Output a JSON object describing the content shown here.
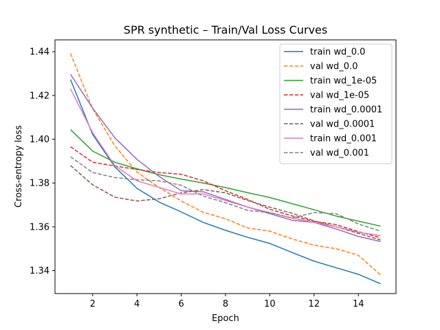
{
  "chart_data": {
    "type": "line",
    "title": "SPR synthetic – Train/Val Loss Curves",
    "xlabel": "Epoch",
    "ylabel": "Cross-entropy loss",
    "xlim": [
      0.3,
      15.7
    ],
    "ylim": [
      1.3295,
      1.4454
    ],
    "xticks": [
      2,
      4,
      6,
      8,
      10,
      12,
      14
    ],
    "yticks": [
      1.34,
      1.36,
      1.38,
      1.4,
      1.42,
      1.44
    ],
    "ytick_labels": [
      "1.34",
      "1.36",
      "1.38",
      "1.40",
      "1.42",
      "1.44"
    ],
    "grid": false,
    "legend_position": "top-right",
    "x": [
      1,
      2,
      3,
      4,
      5,
      6,
      7,
      8,
      9,
      10,
      11,
      12,
      13,
      14,
      15
    ],
    "series": [
      {
        "name": "train wd_0.0",
        "color": "#1f77b4",
        "dash": "solid",
        "values": [
          1.4273,
          1.4022,
          1.3874,
          1.3776,
          1.3713,
          1.3668,
          1.362,
          1.3584,
          1.3552,
          1.3524,
          1.3483,
          1.3443,
          1.3413,
          1.3383,
          1.334
        ]
      },
      {
        "name": "val wd_0.0",
        "color": "#ff7f0e",
        "dash": "dashed",
        "values": [
          1.4392,
          1.414,
          1.397,
          1.385,
          1.378,
          1.3718,
          1.3666,
          1.3637,
          1.3595,
          1.358,
          1.3545,
          1.3516,
          1.35,
          1.347,
          1.338
        ]
      },
      {
        "name": "train wd_1e-05",
        "color": "#2ca02c",
        "dash": "solid",
        "values": [
          1.4044,
          1.3946,
          1.3895,
          1.3865,
          1.3838,
          1.3818,
          1.38,
          1.3779,
          1.3756,
          1.3734,
          1.3706,
          1.3678,
          1.3649,
          1.3626,
          1.3603
        ]
      },
      {
        "name": "val wd_1e-05",
        "color": "#d62728",
        "dash": "dashed",
        "values": [
          1.3966,
          1.3895,
          1.3878,
          1.3862,
          1.3848,
          1.384,
          1.381,
          1.3765,
          1.3725,
          1.368,
          1.365,
          1.3625,
          1.361,
          1.3578,
          1.355
        ]
      },
      {
        "name": "train wd_0.0001",
        "color": "#9467bd",
        "dash": "solid",
        "values": [
          1.4297,
          1.4142,
          1.4007,
          1.3908,
          1.383,
          1.3765,
          1.376,
          1.3725,
          1.369,
          1.366,
          1.363,
          1.362,
          1.359,
          1.3556,
          1.3533
        ]
      },
      {
        "name": "val wd_0.0001",
        "color": "#8c564b",
        "dash": "dashed",
        "values": [
          1.388,
          1.3792,
          1.3735,
          1.3718,
          1.3728,
          1.3755,
          1.377,
          1.3755,
          1.372,
          1.369,
          1.3662,
          1.3627,
          1.36,
          1.357,
          1.354
        ]
      },
      {
        "name": "train wd_0.001",
        "color": "#e377c2",
        "dash": "solid",
        "values": [
          1.423,
          1.403,
          1.388,
          1.381,
          1.378,
          1.375,
          1.375,
          1.372,
          1.369,
          1.3665,
          1.364,
          1.362,
          1.36,
          1.3575,
          1.356
        ]
      },
      {
        "name": "val wd_0.001",
        "color": "#7f7f7f",
        "dash": "dashed",
        "values": [
          1.392,
          1.3848,
          1.3825,
          1.3815,
          1.381,
          1.379,
          1.374,
          1.371,
          1.3675,
          1.3665,
          1.364,
          1.3665,
          1.366,
          1.3613,
          1.358
        ]
      }
    ]
  }
}
